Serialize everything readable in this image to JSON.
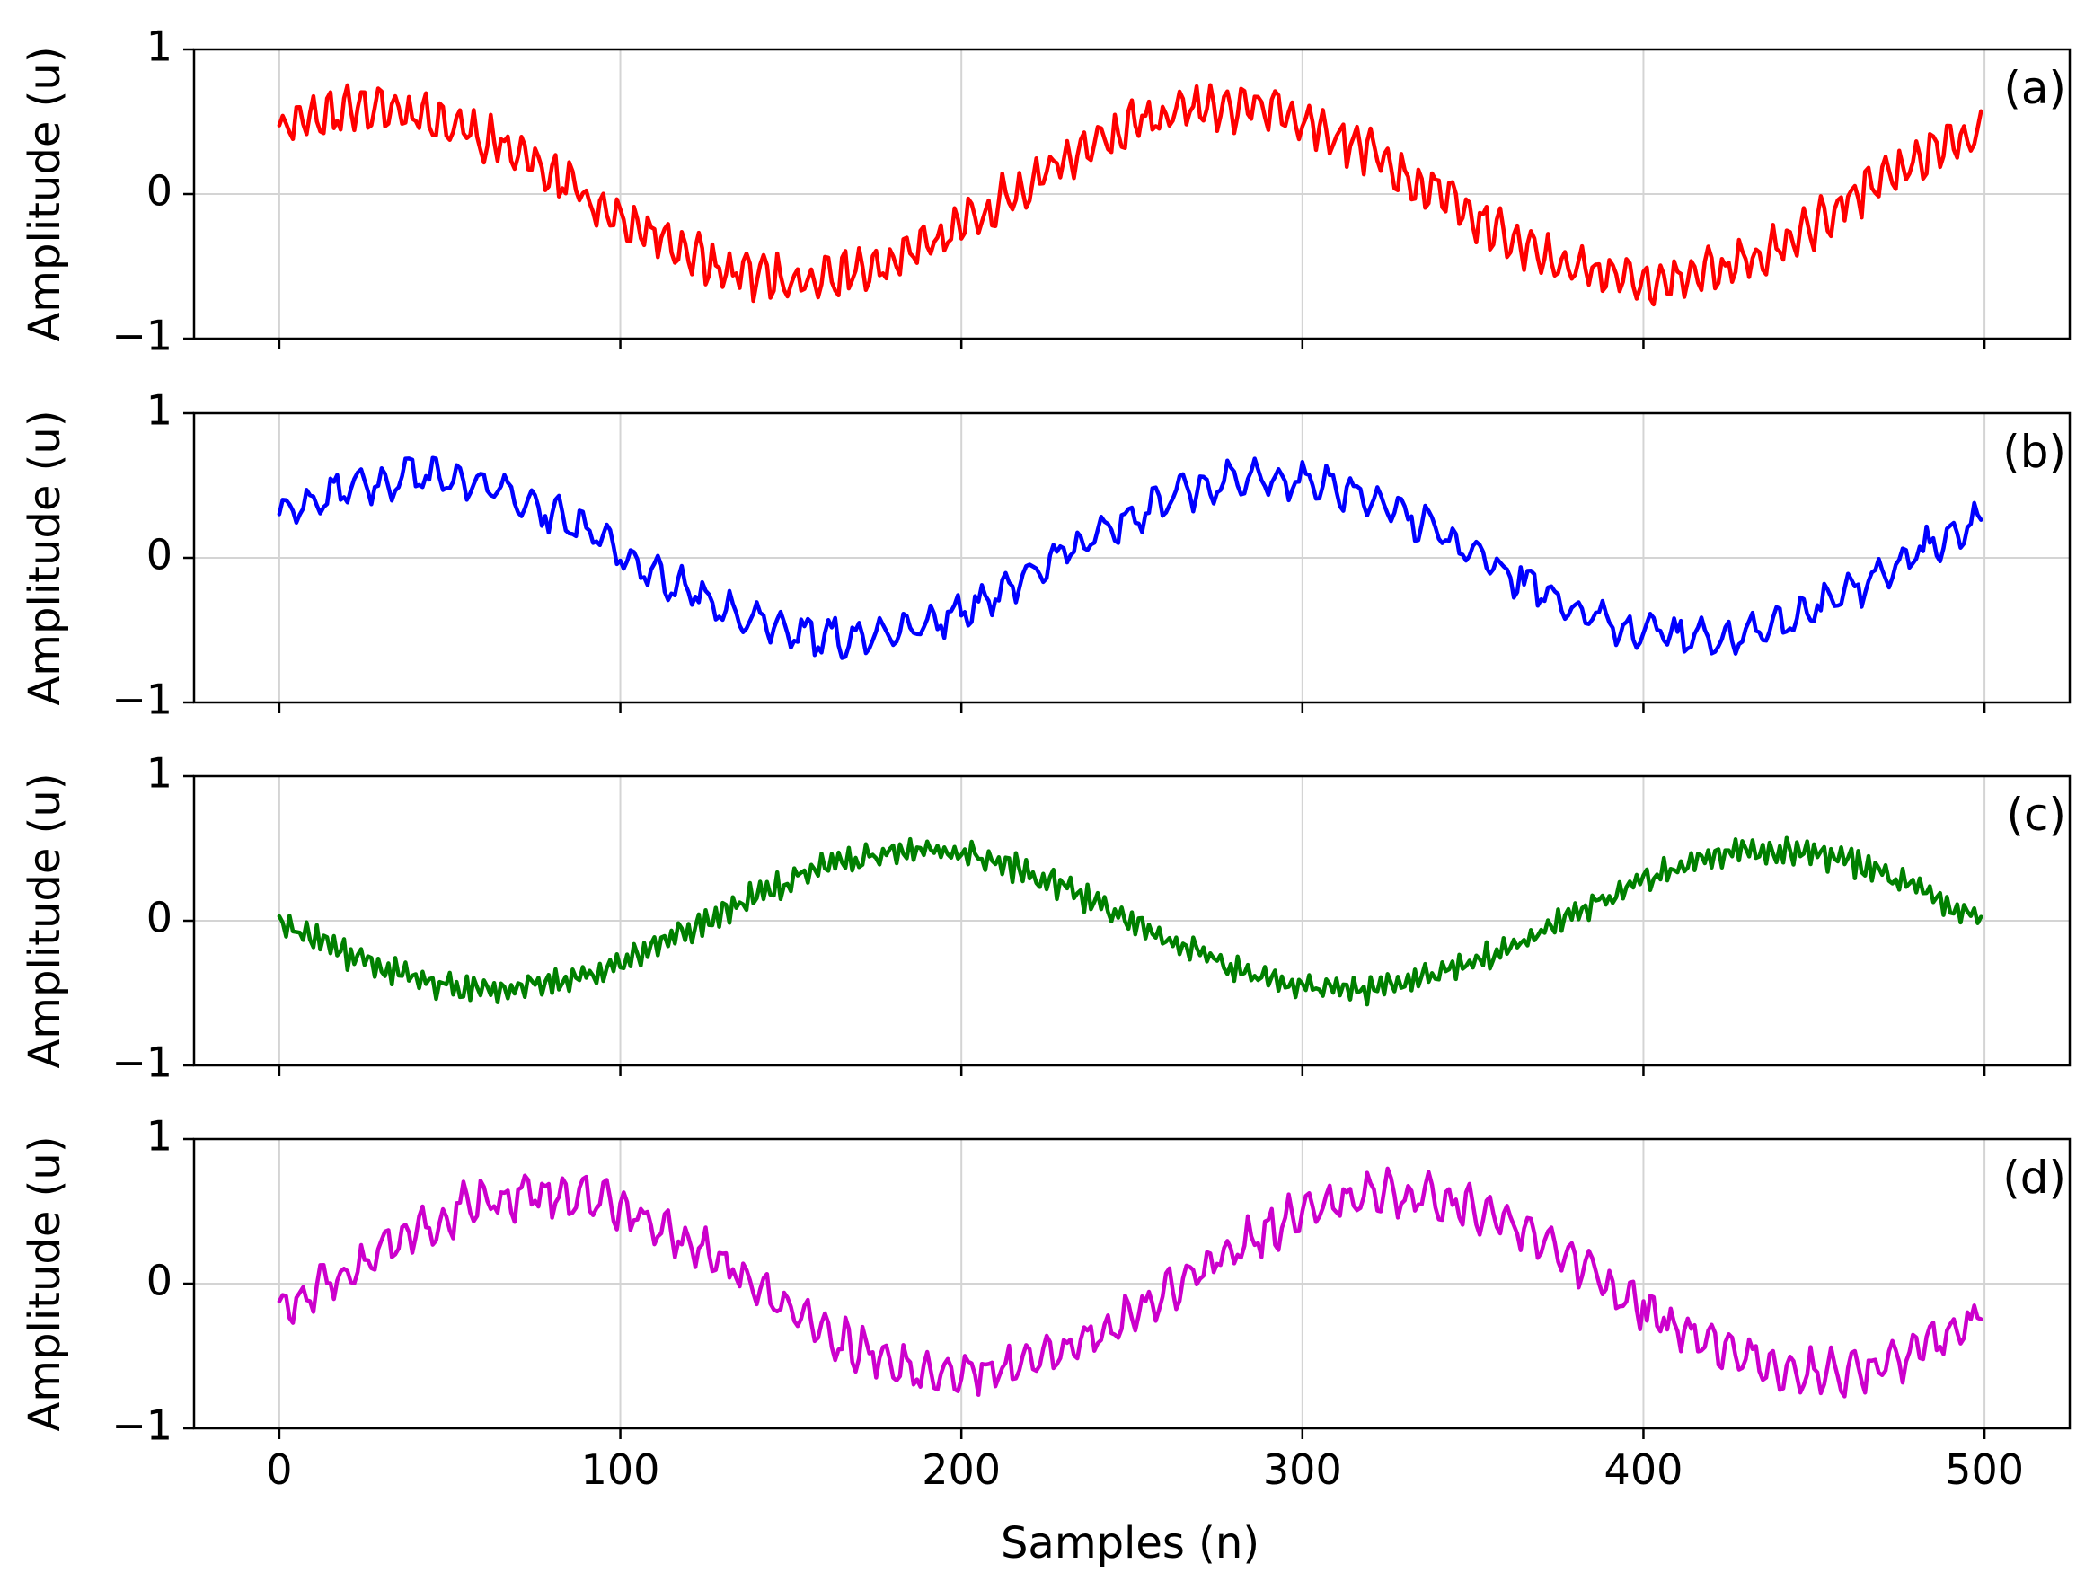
{
  "chart_data": {
    "type": "line",
    "layout": "4 vertically stacked panels sharing the x axis",
    "xlabel": "Samples (n)",
    "xlim": [
      -25,
      525
    ],
    "xticks": [
      0,
      100,
      200,
      300,
      400,
      500
    ],
    "xtick_labels": [
      "0",
      "100",
      "200",
      "300",
      "400",
      "500"
    ],
    "grid": true,
    "panels": [
      {
        "label": "(a)",
        "ylabel": "Amplitude (u)",
        "ylim": [
          -1,
          1
        ],
        "yticks": [
          -1,
          0,
          1
        ],
        "ytick_labels": [
          "−1",
          "0",
          "1"
        ],
        "color": "#ff0000",
        "series": {
          "n_points": 500,
          "base_amplitude": 0.6,
          "base_period": 250,
          "base_phase": 0.9,
          "noise_amplitude": 0.12,
          "noise_period": 4.7,
          "seed": 11
        }
      },
      {
        "label": "(b)",
        "ylabel": "Amplitude (u)",
        "ylim": [
          -1,
          1
        ],
        "yticks": [
          -1,
          0,
          1
        ],
        "ytick_labels": [
          "−1",
          "0",
          "1"
        ],
        "color": "#0000ff",
        "series": {
          "n_points": 500,
          "base_amplitude": 0.55,
          "base_period": 250,
          "base_phase": 0.55,
          "noise_amplitude": 0.1,
          "noise_period": 7.3,
          "seed": 23
        }
      },
      {
        "label": "(c)",
        "ylabel": "Amplitude (u)",
        "ylim": [
          -1,
          1
        ],
        "yticks": [
          -1,
          0,
          1
        ],
        "ytick_labels": [
          "−1",
          "0",
          "1"
        ],
        "color": "#008000",
        "series": {
          "n_points": 500,
          "base_amplitude": 0.48,
          "base_period": 250,
          "base_phase": 3.14159,
          "noise_amplitude": 0.07,
          "noise_period": 2.6,
          "seed": 37
        }
      },
      {
        "label": "(d)",
        "ylabel": "Amplitude (u)",
        "ylim": [
          -1,
          1
        ],
        "yticks": [
          -1,
          0,
          1
        ],
        "ytick_labels": [
          "−1",
          "0",
          "1"
        ],
        "color": "#cc00cc",
        "series": {
          "n_points": 500,
          "base_amplitude": 0.62,
          "base_period": 250,
          "base_phase": -0.35,
          "noise_amplitude": 0.12,
          "noise_period": 5.9,
          "seed": 51
        }
      }
    ]
  }
}
